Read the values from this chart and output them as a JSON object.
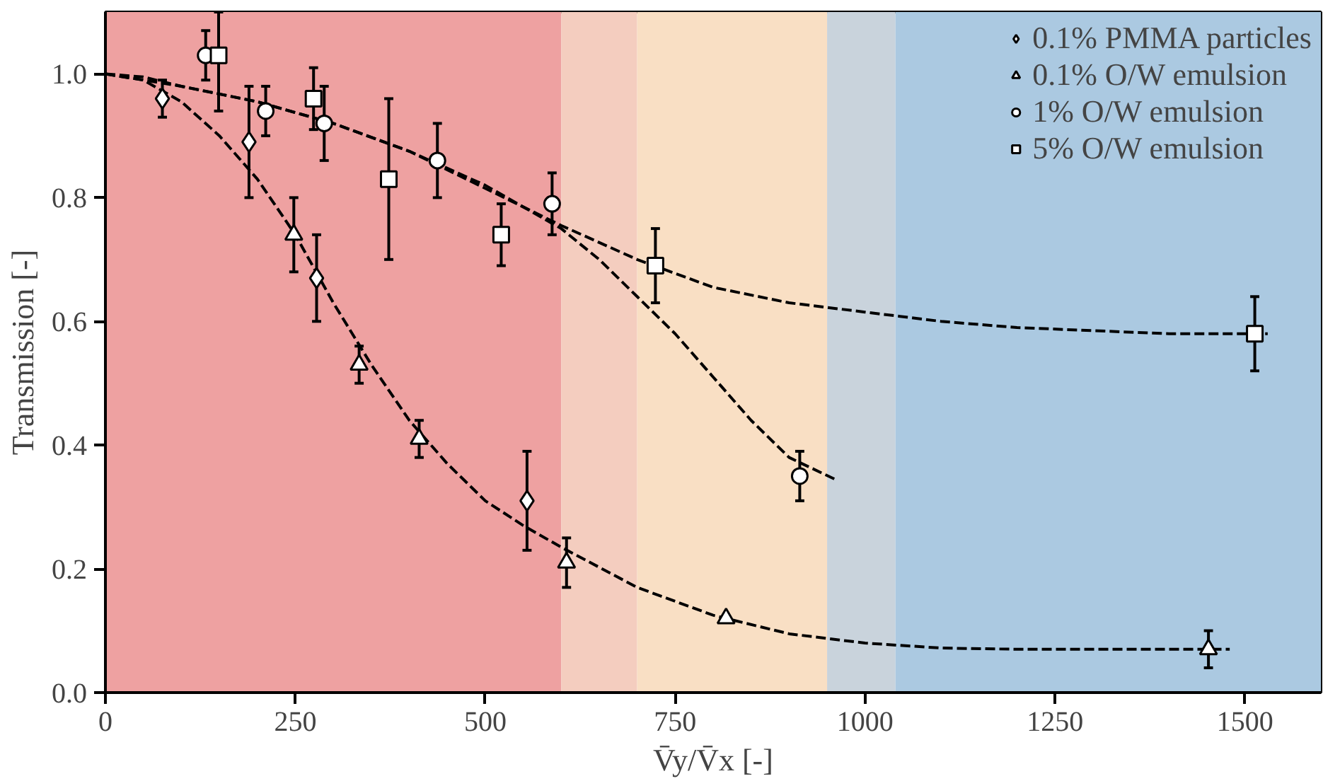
{
  "chart_data": {
    "type": "scatter",
    "xlabel": "V̄y/V̄x [-]",
    "ylabel": "Transmission [-]",
    "xlim": [
      0,
      1600
    ],
    "ylim": [
      0,
      1.1
    ],
    "xticks": [
      0,
      250,
      500,
      750,
      1000,
      1250,
      1500
    ],
    "yticks": [
      {
        "value": 0,
        "label": "0.0"
      },
      {
        "value": 0.2,
        "label": "0.2"
      },
      {
        "value": 0.4,
        "label": "0.4"
      },
      {
        "value": 0.6,
        "label": "0.6"
      },
      {
        "value": 0.8,
        "label": "0.8"
      },
      {
        "value": 1.0,
        "label": "1.0"
      }
    ],
    "grid": false,
    "legend": "top right",
    "bands": [
      {
        "axis": "x",
        "from": 0,
        "to": 600,
        "color": "#eea1a1"
      },
      {
        "axis": "x",
        "from": 600,
        "to": 700,
        "color": "#f4cdbf"
      },
      {
        "axis": "x",
        "from": 700,
        "to": 950,
        "color": "#f9dfc4"
      },
      {
        "axis": "x",
        "from": 950,
        "to": 1040,
        "color": "#c9d3dc"
      },
      {
        "axis": "x",
        "from": 1040,
        "to": 1600,
        "color": "#abc9e1"
      }
    ],
    "series": [
      {
        "name": "0.1% PMMA particles",
        "marker": "diamond",
        "color": "#ffffff",
        "x": [
          75,
          189,
          278,
          555
        ],
        "values": [
          0.96,
          0.89,
          0.67,
          0.31
        ],
        "errors": [
          0.03,
          0.09,
          0.07,
          0.08
        ]
      },
      {
        "name": "0.1% O/W emulsion",
        "marker": "triangle",
        "color": "#ffffff",
        "x": [
          248,
          334,
          413,
          607,
          817,
          1452
        ],
        "values": [
          0.74,
          0.53,
          0.41,
          0.21,
          0.12,
          0.07
        ],
        "errors": [
          0.06,
          0.03,
          0.03,
          0.04,
          null,
          0.03
        ]
      },
      {
        "name": "1% O/W emulsion",
        "marker": "circle",
        "color": "#ffffff",
        "x": [
          132,
          211,
          288,
          437,
          588,
          914
        ],
        "values": [
          1.03,
          0.94,
          0.92,
          0.86,
          0.79,
          0.35
        ],
        "errors": [
          0.04,
          0.04,
          0.06,
          0.06,
          0.05,
          0.04
        ]
      },
      {
        "name": "5% O/W emulsion",
        "marker": "square",
        "color": "#ffffff",
        "x": [
          149,
          274,
          373,
          521,
          724,
          1513
        ],
        "values": [
          1.03,
          0.96,
          0.83,
          0.74,
          0.69,
          0.58
        ],
        "errors": [
          [
            0.94,
            1.1
          ],
          0.05,
          0.13,
          0.05,
          0.06,
          0.06
        ]
      },
      {
        "type": "line",
        "line_style": "dashed",
        "marker": "none",
        "color": "#000000",
        "x": [
          0,
          50,
          100,
          150,
          200,
          250,
          300,
          350,
          400,
          450,
          500,
          550,
          600,
          700,
          800,
          900,
          1000,
          1100,
          1200,
          1300,
          1480
        ],
        "values": [
          1.0,
          0.99,
          0.955,
          0.9,
          0.83,
          0.74,
          0.63,
          0.53,
          0.44,
          0.37,
          0.31,
          0.27,
          0.235,
          0.17,
          0.125,
          0.095,
          0.08,
          0.072,
          0.07,
          0.07,
          0.07
        ]
      },
      {
        "type": "line",
        "line_style": "dashed",
        "marker": "none",
        "color": "#000000",
        "x": [
          0,
          50,
          100,
          200,
          300,
          400,
          500,
          600,
          650,
          700,
          750,
          800,
          850,
          900,
          960
        ],
        "values": [
          1.0,
          0.995,
          0.98,
          0.955,
          0.92,
          0.875,
          0.82,
          0.75,
          0.7,
          0.64,
          0.58,
          0.51,
          0.44,
          0.38,
          0.345
        ]
      },
      {
        "type": "line",
        "line_style": "dashed",
        "marker": "none",
        "color": "#000000",
        "x": [
          0,
          100,
          200,
          300,
          400,
          500,
          600,
          700,
          800,
          900,
          1000,
          1100,
          1200,
          1300,
          1400,
          1530
        ],
        "values": [
          1.0,
          0.98,
          0.955,
          0.92,
          0.875,
          0.815,
          0.755,
          0.7,
          0.655,
          0.63,
          0.615,
          0.6,
          0.59,
          0.585,
          0.58,
          0.58
        ]
      }
    ]
  }
}
